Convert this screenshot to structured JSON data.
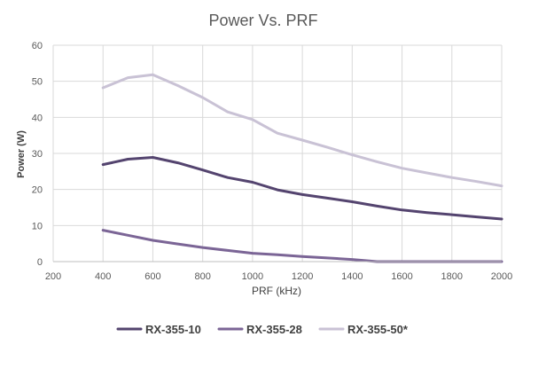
{
  "chart_data": {
    "type": "line",
    "title": "Power Vs. PRF",
    "xlabel": "PRF (kHz)",
    "ylabel": "Power (W)",
    "xlim": [
      200,
      2000
    ],
    "ylim": [
      0,
      60
    ],
    "xticks": [
      200,
      400,
      600,
      800,
      1000,
      1200,
      1400,
      1600,
      1800,
      2000
    ],
    "yticks": [
      0,
      10,
      20,
      30,
      40,
      50,
      60
    ],
    "x_tick_labels": [
      "200",
      "400",
      "600",
      "800",
      "1000",
      "1200",
      "1400",
      "1600",
      "1800",
      "2000"
    ],
    "y_tick_labels": [
      "0",
      "10",
      "20",
      "30",
      "40",
      "50",
      "60"
    ],
    "grid": true,
    "legend_position": "bottom",
    "x": [
      400,
      500,
      600,
      700,
      800,
      900,
      1000,
      1100,
      1200,
      1300,
      1400,
      1500,
      1600,
      1700,
      1800,
      1900,
      2000
    ],
    "series": [
      {
        "name": "RX-355-10",
        "color": "#54446f",
        "values": [
          26.9,
          28.4,
          28.9,
          27.4,
          25.4,
          23.3,
          22.0,
          19.9,
          18.6,
          17.6,
          16.6,
          15.4,
          14.3,
          13.6,
          13.0,
          12.4,
          11.8
        ]
      },
      {
        "name": "RX-355-28",
        "color": "#7b6596",
        "values": [
          8.7,
          7.3,
          5.9,
          4.9,
          3.9,
          3.1,
          2.3,
          1.9,
          1.4,
          1.0,
          0.6,
          0.0,
          0.0,
          0.0,
          0.0,
          0.0,
          0.0
        ]
      },
      {
        "name": "RX-355-50*",
        "color": "#c9c2d5",
        "values": [
          48.2,
          51.0,
          51.8,
          48.8,
          45.5,
          41.5,
          39.4,
          35.6,
          33.7,
          31.7,
          29.6,
          27.7,
          25.9,
          24.6,
          23.3,
          22.2,
          21.0
        ]
      }
    ]
  }
}
